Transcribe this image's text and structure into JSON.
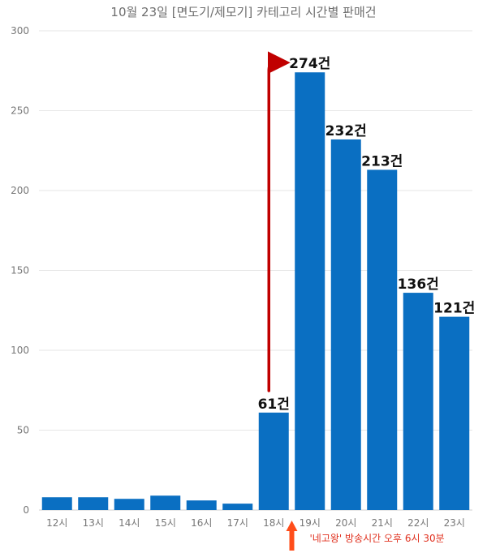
{
  "chart_data": {
    "type": "bar",
    "title": "10월 23일 [면도기/제모기] 카테고리 시간별 판매건",
    "categories": [
      "12시",
      "13시",
      "14시",
      "15시",
      "16시",
      "17시",
      "18시",
      "19시",
      "20시",
      "21시",
      "22시",
      "23시"
    ],
    "values": [
      8,
      8,
      7,
      9,
      6,
      4,
      61,
      274,
      232,
      213,
      136,
      121
    ],
    "data_labels": [
      "",
      "",
      "",
      "",
      "",
      "",
      "61건",
      "274건",
      "232건",
      "213건",
      "136건",
      "121건"
    ],
    "ylim": [
      0,
      300
    ],
    "yticks": [
      0,
      50,
      100,
      150,
      200,
      250,
      300
    ],
    "grid": true,
    "bar_color": "#0a6fc2",
    "annotation": {
      "text": "'네고왕' 방송시간 오후 6시 30분",
      "color": "#e0301e",
      "jump_arrow_color": "#c00000",
      "from_category": "18시",
      "to_category": "19시"
    }
  }
}
